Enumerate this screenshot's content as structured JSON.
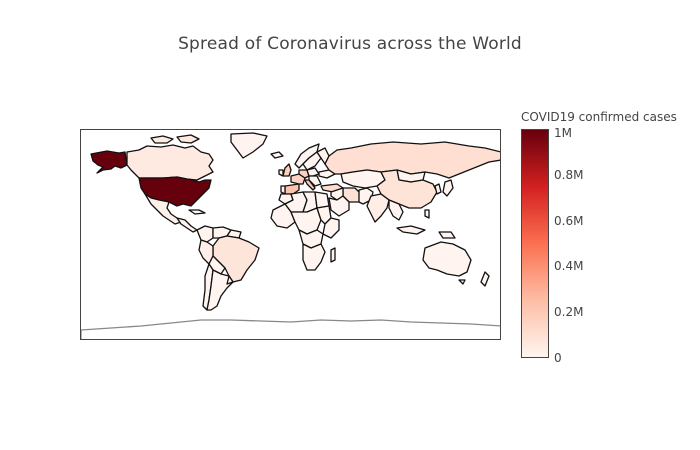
{
  "title": "Spread of Coronavirus across the World",
  "colorbar": {
    "title": "COVID19 confirmed cases",
    "min": 0,
    "max": 1000000,
    "ticks": [
      {
        "value": 1000000,
        "label": "1M"
      },
      {
        "value": 800000,
        "label": "0.8M"
      },
      {
        "value": 600000,
        "label": "0.6M"
      },
      {
        "value": 400000,
        "label": "0.4M"
      },
      {
        "value": 200000,
        "label": "0.2M"
      },
      {
        "value": 0,
        "label": "0"
      }
    ],
    "colorscale": [
      "#fff5f0",
      "#fcbea5",
      "#fb7050",
      "#d32020",
      "#67000d"
    ]
  },
  "map_data": {
    "type": "choropleth",
    "projection": "equirectangular",
    "value_label": "COVID19 confirmed cases",
    "regions": [
      {
        "name": "United States",
        "value": 1000000
      },
      {
        "name": "Spain",
        "value": 230000
      },
      {
        "name": "Italy",
        "value": 200000
      },
      {
        "name": "France",
        "value": 160000
      },
      {
        "name": "Germany",
        "value": 160000
      },
      {
        "name": "United Kingdom",
        "value": 170000
      },
      {
        "name": "Turkey",
        "value": 115000
      },
      {
        "name": "Russia",
        "value": 100000
      },
      {
        "name": "Iran",
        "value": 95000
      },
      {
        "name": "China",
        "value": 84000
      },
      {
        "name": "Brazil",
        "value": 75000
      },
      {
        "name": "Canada",
        "value": 52000
      },
      {
        "name": "Peru",
        "value": 30000
      },
      {
        "name": "India",
        "value": 35000
      },
      {
        "name": "Mexico",
        "value": 20000
      }
    ]
  }
}
